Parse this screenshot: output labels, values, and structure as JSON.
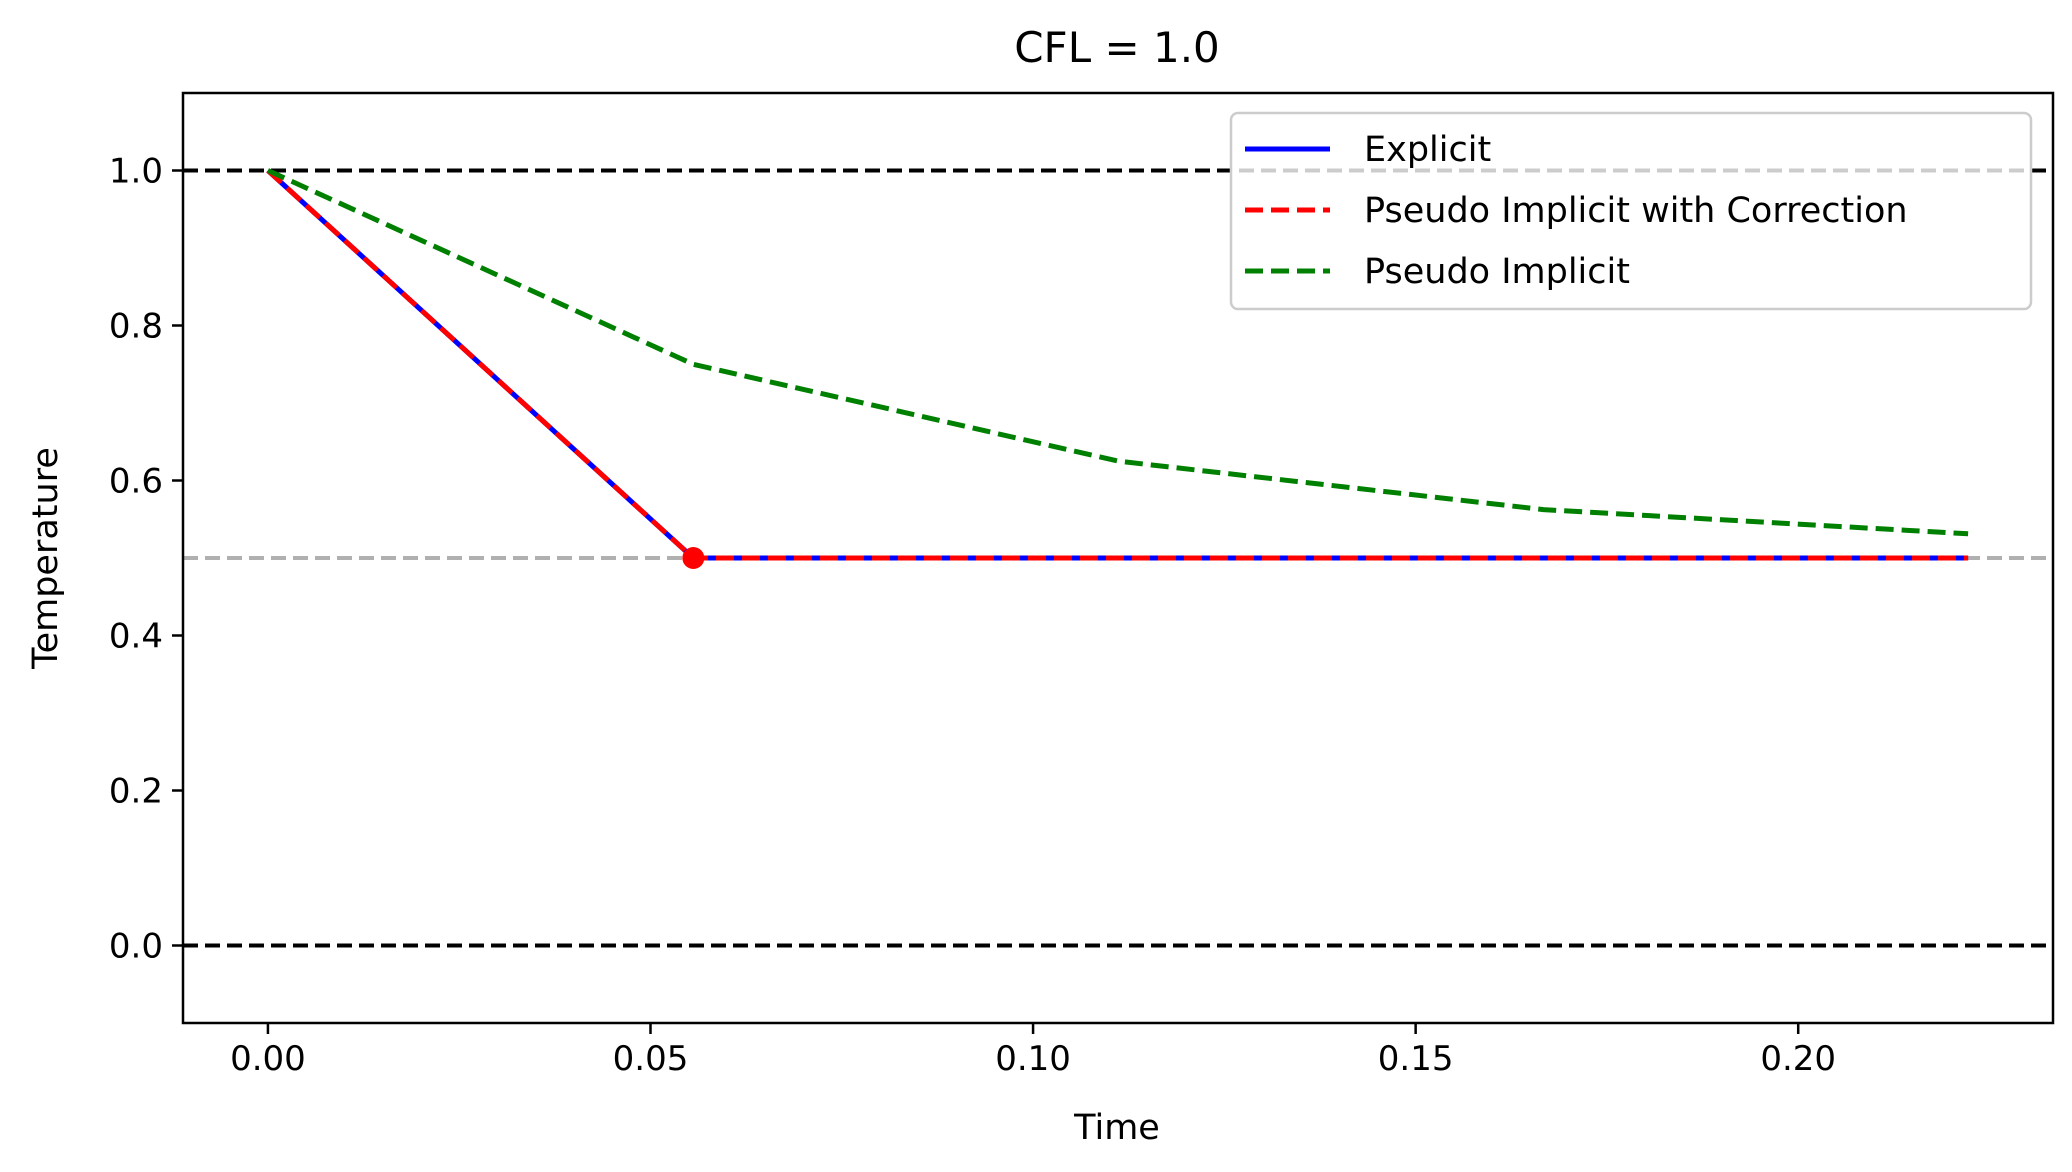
{
  "chart_data": {
    "type": "line",
    "title": "CFL = 1.0",
    "xlabel": "Time",
    "ylabel": "Temperature",
    "xlim": [
      -0.0111,
      0.2333
    ],
    "ylim": [
      -0.1,
      1.1
    ],
    "xticks": [
      0.0,
      0.05,
      0.1,
      0.15,
      0.2
    ],
    "xtick_labels": [
      "0.00",
      "0.05",
      "0.10",
      "0.15",
      "0.20"
    ],
    "yticks": [
      0.0,
      0.2,
      0.4,
      0.6,
      0.8,
      1.0
    ],
    "ytick_labels": [
      "0.0",
      "0.2",
      "0.4",
      "0.6",
      "0.8",
      "1.0"
    ],
    "grid": false,
    "legend_position": "top-right",
    "reference_lines": [
      {
        "name": "upper-bound",
        "y": 1.0,
        "color": "#000000",
        "style": "dashed"
      },
      {
        "name": "equilibrium",
        "y": 0.5,
        "color": "#b0b0b0",
        "style": "dashed"
      },
      {
        "name": "lower-bound",
        "y": 0.0,
        "color": "#000000",
        "style": "dashed"
      }
    ],
    "series": [
      {
        "name": "Explicit",
        "color": "#0000ff",
        "style": "solid",
        "x": [
          0.0,
          0.0556,
          0.1111,
          0.1667,
          0.2222
        ],
        "y": [
          1.0,
          0.5,
          0.5,
          0.5,
          0.5
        ]
      },
      {
        "name": "Pseudo Implicit with Correction",
        "color": "#ff0000",
        "style": "dashed",
        "x": [
          0.0,
          0.0556,
          0.1111,
          0.1667,
          0.2222
        ],
        "y": [
          1.0,
          0.5,
          0.5,
          0.5,
          0.5
        ]
      },
      {
        "name": "Pseudo Implicit",
        "color": "#008000",
        "style": "dashed",
        "x": [
          0.0,
          0.0556,
          0.1111,
          0.1667,
          0.2222
        ],
        "y": [
          1.0,
          0.75,
          0.625,
          0.5625,
          0.53125
        ]
      }
    ],
    "markers": [
      {
        "name": "equilibrium-point",
        "x": 0.0556,
        "y": 0.5,
        "color": "#ff0000"
      }
    ]
  }
}
